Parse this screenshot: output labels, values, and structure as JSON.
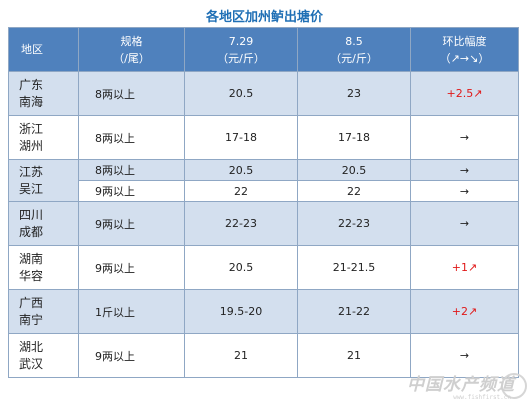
{
  "title": "各地区加州鲈出塘价",
  "headers": {
    "region": "地区",
    "spec_1": "规格",
    "spec_2": "（/尾）",
    "d1_1": "7.29",
    "d1_2": "（元/斤）",
    "d2_1": "8.5",
    "d2_2": "（元/斤）",
    "chg_1": "环比幅度",
    "chg_2": "（↗→↘）"
  },
  "rows": [
    {
      "region_1": "广东",
      "region_2": "南海",
      "spec": "8两以上",
      "d1": "20.5",
      "d2": "23",
      "chg": "+2.5↗"
    },
    {
      "region_1": "浙江",
      "region_2": "湖州",
      "spec": "8两以上",
      "d1": "17-18",
      "d2": "17-18",
      "chg": "→"
    },
    {
      "region_1": "江苏",
      "region_2": "吴江",
      "spec": "8两以上",
      "d1": "20.5",
      "d2": "20.5",
      "chg": "→"
    },
    {
      "spec": "9两以上",
      "d1": "22",
      "d2": "22",
      "chg": "→"
    },
    {
      "region_1": "四川",
      "region_2": "成都",
      "spec": "9两以上",
      "d1": "22-23",
      "d2": "22-23",
      "chg": "→"
    },
    {
      "region_1": "湖南",
      "region_2": "华容",
      "spec": "9两以上",
      "d1": "20.5",
      "d2": "21-21.5",
      "chg": "+1↗"
    },
    {
      "region_1": "广西",
      "region_2": "南宁",
      "spec": "1斤以上",
      "d1": "19.5-20",
      "d2": "21-22",
      "chg": "+2↗"
    },
    {
      "region_1": "湖北",
      "region_2": "武汉",
      "spec": "9两以上",
      "d1": "21",
      "d2": "21",
      "chg": "→"
    }
  ],
  "watermark": "中国水产频道",
  "watermark_url": "www.fishfirst.cn",
  "colors": {
    "header_bg": "#4f81bd",
    "title": "#1f6fb5",
    "shade": "#d3dfee",
    "up": "#e01818"
  }
}
